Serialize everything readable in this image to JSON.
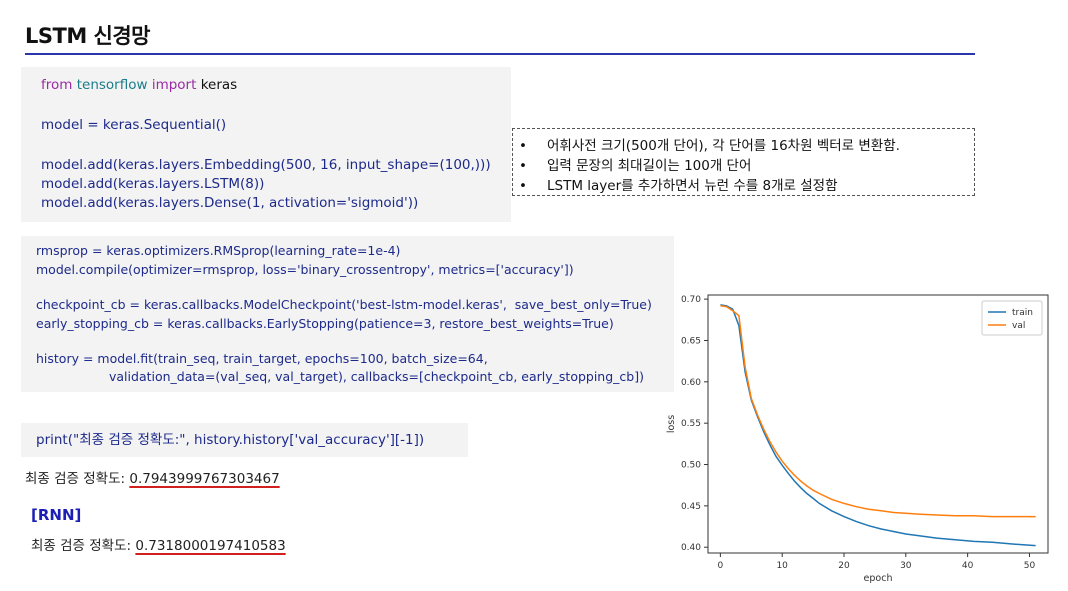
{
  "slide": {
    "title": "LSTM 신경망"
  },
  "code_block_1": {
    "lines": [
      [
        "from",
        " ",
        "tensorflow",
        " ",
        "import",
        " keras"
      ],
      [],
      [
        "model = keras.Sequential()"
      ],
      [],
      [
        "model.add(keras.layers.Embedding(500, 16, input_shape=(100,)))"
      ],
      [
        "model.add(keras.layers.LSTM(8))"
      ],
      [
        "model.add(keras.layers.Dense(1, activation='sigmoid'))"
      ]
    ],
    "import_from": "from",
    "import_module": "tensorflow",
    "import_kw": "import",
    "import_name": " keras",
    "model_line": "model = keras.Sequential()",
    "add_embedding": "model.add(keras.layers.Embedding(500, 16, input_shape=(100,)))",
    "add_lstm": "model.add(keras.layers.LSTM(8))",
    "add_dense": "model.add(keras.layers.Dense(1, activation='sigmoid'))"
  },
  "notes": {
    "bullet": "•",
    "items": [
      "어휘사전 크기(500개 단어), 각 단어를 16차원 벡터로 변환함.",
      "입력 문장의 최대길이는 100개 단어",
      "LSTM layer를 추가하면서 뉴런 수를 8개로 설정함"
    ]
  },
  "code_block_2": {
    "rmsprop": "rmsprop = keras.optimizers.RMSprop(learning_rate=1e-4)",
    "compile": "model.compile(optimizer=rmsprop, loss='binary_crossentropy', metrics=['accuracy'])",
    "checkpoint": "checkpoint_cb = keras.callbacks.ModelCheckpoint('best-lstm-model.keras',  save_best_only=True)",
    "early_stop": "early_stopping_cb = keras.callbacks.EarlyStopping(patience=3, restore_best_weights=True)",
    "fit_1": "history = model.fit(train_seq, train_target, epochs=100, batch_size=64,",
    "fit_2": "validation_data=(val_seq, val_target), callbacks=[checkpoint_cb, early_stopping_cb])"
  },
  "code_block_3": {
    "print_line": "print(\"최종 검증 정확도:\", history.history['val_accuracy'][-1])"
  },
  "results": {
    "lstm_label": "최종 검증 정확도:",
    "lstm_value": "0.7943999767303467",
    "rnn_heading": "[RNN]",
    "rnn_label": "최종 검증 정확도:",
    "rnn_value": "0.7318000197410583"
  },
  "chart_data": {
    "type": "line",
    "xlabel": "epoch",
    "ylabel": "loss",
    "xlim": [
      -2,
      53
    ],
    "ylim": [
      0.393,
      0.705
    ],
    "xticks": [
      0,
      10,
      20,
      30,
      40,
      50
    ],
    "yticks": [
      0.4,
      0.45,
      0.5,
      0.55,
      0.6,
      0.65,
      0.7
    ],
    "xtick_labels": [
      "0",
      "10",
      "20",
      "30",
      "40",
      "50"
    ],
    "ytick_labels": [
      "0.40",
      "0.45",
      "0.50",
      "0.55",
      "0.60",
      "0.65",
      "0.70"
    ],
    "legend_position": "top-right",
    "series": [
      {
        "name": "train",
        "color": "#1f77b4",
        "x": [
          0,
          1,
          2,
          3,
          4,
          5,
          6,
          7,
          8,
          9,
          10,
          11,
          12,
          13,
          14,
          15,
          16,
          18,
          20,
          22,
          24,
          26,
          28,
          30,
          32,
          35,
          38,
          41,
          44,
          47,
          51
        ],
        "y": [
          0.693,
          0.692,
          0.688,
          0.668,
          0.612,
          0.578,
          0.558,
          0.54,
          0.524,
          0.51,
          0.499,
          0.489,
          0.48,
          0.472,
          0.465,
          0.459,
          0.453,
          0.444,
          0.437,
          0.431,
          0.426,
          0.422,
          0.419,
          0.416,
          0.414,
          0.411,
          0.409,
          0.407,
          0.406,
          0.404,
          0.402
        ]
      },
      {
        "name": "val",
        "color": "#ff7f0e",
        "x": [
          0,
          1,
          2,
          3,
          4,
          5,
          6,
          7,
          8,
          9,
          10,
          11,
          12,
          13,
          14,
          15,
          16,
          18,
          20,
          22,
          24,
          26,
          28,
          30,
          32,
          35,
          38,
          41,
          44,
          47,
          51
        ],
        "y": [
          0.692,
          0.691,
          0.686,
          0.68,
          0.618,
          0.58,
          0.56,
          0.543,
          0.528,
          0.515,
          0.504,
          0.495,
          0.487,
          0.48,
          0.474,
          0.469,
          0.465,
          0.458,
          0.453,
          0.449,
          0.446,
          0.444,
          0.442,
          0.441,
          0.44,
          0.439,
          0.438,
          0.438,
          0.437,
          0.437,
          0.437
        ]
      }
    ]
  }
}
